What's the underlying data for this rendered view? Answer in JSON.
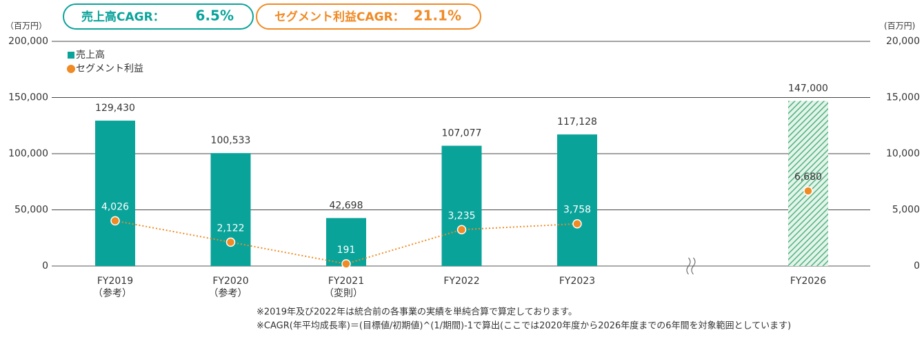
{
  "badges": [
    {
      "label": "売上高CAGR：",
      "value": "6.5%",
      "color": "#0aa39a"
    },
    {
      "label": "セグメント利益CAGR：",
      "value": "21.1%",
      "color": "#f08a24"
    }
  ],
  "chart_data": {
    "type": "bar",
    "y_unit": "（百万円）",
    "y2_unit": "(百万円)",
    "categories": [
      "FY2019",
      "FY2020",
      "FY2021",
      "FY2022",
      "FY2023",
      null,
      "FY2026"
    ],
    "category_notes": [
      "（参考）",
      "（参考）",
      "（変則）",
      null,
      null,
      null,
      null
    ],
    "series": [
      {
        "name": "売上高",
        "type": "bar",
        "color": "#0aa39a",
        "values": [
          129430,
          100533,
          42698,
          107077,
          117128,
          null,
          147000
        ],
        "value_labels": [
          "129,430",
          "100,533",
          "42,698",
          "107,077",
          "117,128",
          null,
          "147,000"
        ],
        "hatch": [
          false,
          false,
          false,
          false,
          false,
          false,
          true
        ]
      },
      {
        "name": "セグメント利益",
        "type": "line",
        "axis": "y2",
        "color": "#f08a24",
        "values": [
          4026,
          2122,
          191,
          3235,
          3758,
          null,
          6680
        ],
        "value_labels": [
          "4,026",
          "2,122",
          "191",
          "3,235",
          "3,758",
          null,
          "6,680"
        ]
      }
    ],
    "ylim": [
      0,
      200000
    ],
    "yticks": [
      0,
      {
        "value": 50000,
        "label": "50,000"
      },
      {
        "value": 100000,
        "label": "100,000"
      },
      {
        "value": 150000,
        "label": "150,000"
      },
      {
        "value": 200000,
        "label": "200,000"
      }
    ],
    "y2lim": [
      0,
      20000
    ],
    "y2ticks": [
      0,
      {
        "value": 5000,
        "label": "5,000"
      },
      {
        "value": 10000,
        "label": "10,000"
      },
      {
        "value": 15000,
        "label": "15,000"
      },
      {
        "value": 20000,
        "label": "20,000"
      }
    ],
    "grid": true
  },
  "footnotes": [
    "※2019年及び2022年は統合前の各事業の実績を単純合算で算定しております。",
    "※CAGR(年平均成長率)＝(目標値/初期値)^(1/期間)-1で算出(ここでは2020年度から2026年度までの6年間を対象範囲としています)"
  ]
}
